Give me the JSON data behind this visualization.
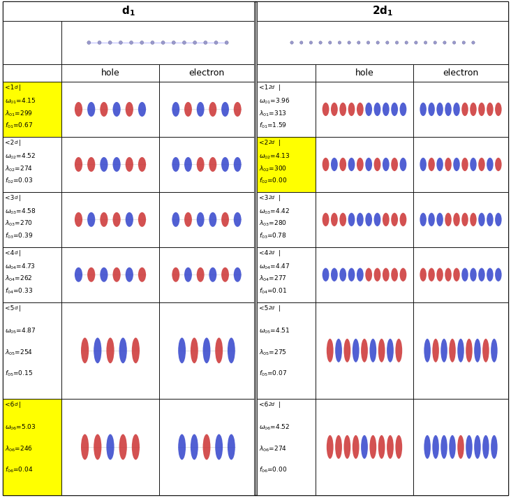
{
  "title_d1": "$\\mathbf{d_1}$",
  "title_2d1": "$\\mathbf{2d_1}$",
  "highlight_color": "#FFFF00",
  "rows": [
    {
      "label_d1_highlight": true,
      "omega_d1": "4.15",
      "lambda_d1": "299",
      "f_d1": "0.67",
      "label_2d1_highlight": false,
      "omega_2d1": "3.96",
      "lambda_2d1": "313",
      "f_2d1": "1.59"
    },
    {
      "label_d1_highlight": false,
      "omega_d1": "4.52",
      "lambda_d1": "274",
      "f_d1": "0.03",
      "label_2d1_highlight": true,
      "omega_2d1": "4.13",
      "lambda_2d1": "300",
      "f_2d1": "0.00"
    },
    {
      "label_d1_highlight": false,
      "omega_d1": "4.58",
      "lambda_d1": "270",
      "f_d1": "0.39",
      "label_2d1_highlight": false,
      "omega_2d1": "4.42",
      "lambda_2d1": "280",
      "f_2d1": "0.78"
    },
    {
      "label_d1_highlight": false,
      "omega_d1": "4.73",
      "lambda_d1": "262",
      "f_d1": "0.33",
      "label_2d1_highlight": false,
      "omega_2d1": "4.47",
      "lambda_2d1": "277",
      "f_2d1": "0.01"
    },
    {
      "label_d1_highlight": false,
      "omega_d1": "4.87",
      "lambda_d1": "254",
      "f_d1": "0.15",
      "label_2d1_highlight": false,
      "omega_2d1": "4.51",
      "lambda_2d1": "275",
      "f_2d1": "0.07"
    },
    {
      "label_d1_highlight": true,
      "omega_d1": "5.03",
      "lambda_d1": "246",
      "f_d1": "0.04",
      "label_2d1_highlight": false,
      "omega_2d1": "4.52",
      "lambda_2d1": "274",
      "f_2d1": "0.00"
    }
  ],
  "orbital_colors": [
    "#CC2222",
    "#2233CC"
  ],
  "mol_color": "#888888",
  "mol_bond_color": "#CCCCCC"
}
